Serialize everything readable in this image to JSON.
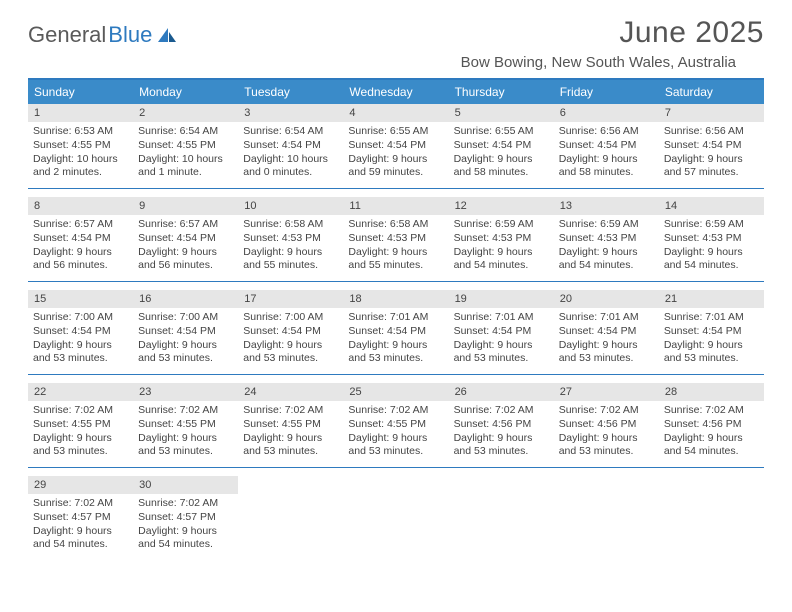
{
  "brand": {
    "part1": "General",
    "part2": "Blue"
  },
  "title": "June 2025",
  "location": "Bow Bowing, New South Wales, Australia",
  "colors": {
    "header_bg": "#3a8bc9",
    "accent": "#2e7abf",
    "daynum_bg": "#e6e6e6",
    "text": "#444444"
  },
  "day_headers": [
    "Sunday",
    "Monday",
    "Tuesday",
    "Wednesday",
    "Thursday",
    "Friday",
    "Saturday"
  ],
  "days": [
    {
      "n": "1",
      "sr": "Sunrise: 6:53 AM",
      "ss": "Sunset: 4:55 PM",
      "dl": "Daylight: 10 hours and 2 minutes."
    },
    {
      "n": "2",
      "sr": "Sunrise: 6:54 AM",
      "ss": "Sunset: 4:55 PM",
      "dl": "Daylight: 10 hours and 1 minute."
    },
    {
      "n": "3",
      "sr": "Sunrise: 6:54 AM",
      "ss": "Sunset: 4:54 PM",
      "dl": "Daylight: 10 hours and 0 minutes."
    },
    {
      "n": "4",
      "sr": "Sunrise: 6:55 AM",
      "ss": "Sunset: 4:54 PM",
      "dl": "Daylight: 9 hours and 59 minutes."
    },
    {
      "n": "5",
      "sr": "Sunrise: 6:55 AM",
      "ss": "Sunset: 4:54 PM",
      "dl": "Daylight: 9 hours and 58 minutes."
    },
    {
      "n": "6",
      "sr": "Sunrise: 6:56 AM",
      "ss": "Sunset: 4:54 PM",
      "dl": "Daylight: 9 hours and 58 minutes."
    },
    {
      "n": "7",
      "sr": "Sunrise: 6:56 AM",
      "ss": "Sunset: 4:54 PM",
      "dl": "Daylight: 9 hours and 57 minutes."
    },
    {
      "n": "8",
      "sr": "Sunrise: 6:57 AM",
      "ss": "Sunset: 4:54 PM",
      "dl": "Daylight: 9 hours and 56 minutes."
    },
    {
      "n": "9",
      "sr": "Sunrise: 6:57 AM",
      "ss": "Sunset: 4:54 PM",
      "dl": "Daylight: 9 hours and 56 minutes."
    },
    {
      "n": "10",
      "sr": "Sunrise: 6:58 AM",
      "ss": "Sunset: 4:53 PM",
      "dl": "Daylight: 9 hours and 55 minutes."
    },
    {
      "n": "11",
      "sr": "Sunrise: 6:58 AM",
      "ss": "Sunset: 4:53 PM",
      "dl": "Daylight: 9 hours and 55 minutes."
    },
    {
      "n": "12",
      "sr": "Sunrise: 6:59 AM",
      "ss": "Sunset: 4:53 PM",
      "dl": "Daylight: 9 hours and 54 minutes."
    },
    {
      "n": "13",
      "sr": "Sunrise: 6:59 AM",
      "ss": "Sunset: 4:53 PM",
      "dl": "Daylight: 9 hours and 54 minutes."
    },
    {
      "n": "14",
      "sr": "Sunrise: 6:59 AM",
      "ss": "Sunset: 4:53 PM",
      "dl": "Daylight: 9 hours and 54 minutes."
    },
    {
      "n": "15",
      "sr": "Sunrise: 7:00 AM",
      "ss": "Sunset: 4:54 PM",
      "dl": "Daylight: 9 hours and 53 minutes."
    },
    {
      "n": "16",
      "sr": "Sunrise: 7:00 AM",
      "ss": "Sunset: 4:54 PM",
      "dl": "Daylight: 9 hours and 53 minutes."
    },
    {
      "n": "17",
      "sr": "Sunrise: 7:00 AM",
      "ss": "Sunset: 4:54 PM",
      "dl": "Daylight: 9 hours and 53 minutes."
    },
    {
      "n": "18",
      "sr": "Sunrise: 7:01 AM",
      "ss": "Sunset: 4:54 PM",
      "dl": "Daylight: 9 hours and 53 minutes."
    },
    {
      "n": "19",
      "sr": "Sunrise: 7:01 AM",
      "ss": "Sunset: 4:54 PM",
      "dl": "Daylight: 9 hours and 53 minutes."
    },
    {
      "n": "20",
      "sr": "Sunrise: 7:01 AM",
      "ss": "Sunset: 4:54 PM",
      "dl": "Daylight: 9 hours and 53 minutes."
    },
    {
      "n": "21",
      "sr": "Sunrise: 7:01 AM",
      "ss": "Sunset: 4:54 PM",
      "dl": "Daylight: 9 hours and 53 minutes."
    },
    {
      "n": "22",
      "sr": "Sunrise: 7:02 AM",
      "ss": "Sunset: 4:55 PM",
      "dl": "Daylight: 9 hours and 53 minutes."
    },
    {
      "n": "23",
      "sr": "Sunrise: 7:02 AM",
      "ss": "Sunset: 4:55 PM",
      "dl": "Daylight: 9 hours and 53 minutes."
    },
    {
      "n": "24",
      "sr": "Sunrise: 7:02 AM",
      "ss": "Sunset: 4:55 PM",
      "dl": "Daylight: 9 hours and 53 minutes."
    },
    {
      "n": "25",
      "sr": "Sunrise: 7:02 AM",
      "ss": "Sunset: 4:55 PM",
      "dl": "Daylight: 9 hours and 53 minutes."
    },
    {
      "n": "26",
      "sr": "Sunrise: 7:02 AM",
      "ss": "Sunset: 4:56 PM",
      "dl": "Daylight: 9 hours and 53 minutes."
    },
    {
      "n": "27",
      "sr": "Sunrise: 7:02 AM",
      "ss": "Sunset: 4:56 PM",
      "dl": "Daylight: 9 hours and 53 minutes."
    },
    {
      "n": "28",
      "sr": "Sunrise: 7:02 AM",
      "ss": "Sunset: 4:56 PM",
      "dl": "Daylight: 9 hours and 54 minutes."
    },
    {
      "n": "29",
      "sr": "Sunrise: 7:02 AM",
      "ss": "Sunset: 4:57 PM",
      "dl": "Daylight: 9 hours and 54 minutes."
    },
    {
      "n": "30",
      "sr": "Sunrise: 7:02 AM",
      "ss": "Sunset: 4:57 PM",
      "dl": "Daylight: 9 hours and 54 minutes."
    }
  ]
}
